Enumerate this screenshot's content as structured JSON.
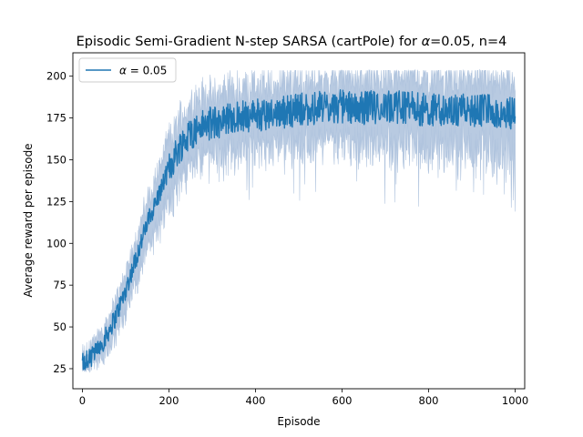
{
  "chart_data": {
    "type": "line",
    "title_prefix": "Episodic Semi-Gradient N-step SARSA (cartPole) for ",
    "title_alpha_symbol": "α",
    "title_suffix": "=0.05, n=4",
    "xlabel": "Episode",
    "ylabel": "Average reward per episode",
    "xlim": [
      -22,
      1022
    ],
    "ylim": [
      13,
      214
    ],
    "xticks": [
      0,
      200,
      400,
      600,
      800,
      1000
    ],
    "yticks": [
      25,
      50,
      75,
      100,
      125,
      150,
      175,
      200
    ],
    "grid": false,
    "legend_placement": "top-left",
    "legend": {
      "symbol": "α",
      "text": " = 0.05"
    },
    "colors": {
      "mean_line": "#1f77b4",
      "band": "#b0c4de"
    },
    "series": [
      {
        "name": "α = 0.05",
        "mean_trend": {
          "x": [
            0,
            25,
            50,
            75,
            100,
            125,
            150,
            175,
            200,
            225,
            250,
            275,
            300,
            350,
            400,
            450,
            500,
            550,
            600,
            650,
            700,
            750,
            800,
            850,
            900,
            950,
            1000
          ],
          "y": [
            28,
            33,
            42,
            55,
            72,
            92,
            112,
            128,
            145,
            158,
            166,
            170,
            172,
            175,
            177,
            178,
            180,
            181,
            182,
            181,
            182,
            181,
            180,
            180,
            179,
            179,
            178
          ]
        },
        "band_half_width": {
          "x": [
            0,
            100,
            200,
            300,
            500,
            700,
            1000
          ],
          "y": [
            6,
            12,
            20,
            20,
            20,
            22,
            25
          ]
        }
      }
    ]
  }
}
